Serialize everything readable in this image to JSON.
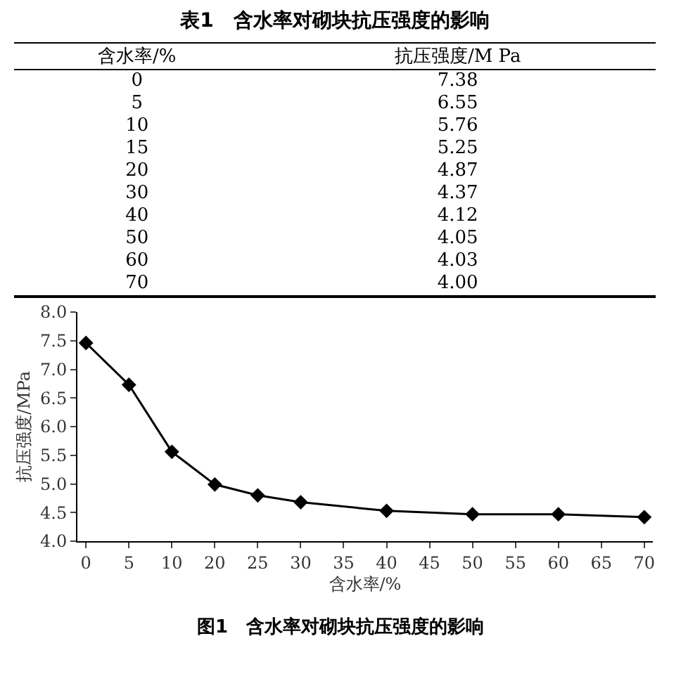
{
  "chart_data": [
    {
      "type": "other",
      "title": "表1　含水率对砌块抗压强度的影响",
      "xlabel": "含水率/%",
      "ylabel": "抗压强度/M Pa",
      "categories": [
        "0",
        "5",
        "10",
        "15",
        "20",
        "30",
        "40",
        "50",
        "60",
        "70"
      ],
      "value_labels": [
        "7.38",
        "6.55",
        "5.76",
        "5.25",
        "4.87",
        "4.37",
        "4.12",
        "4.05",
        "4.03",
        "4.00"
      ]
    },
    {
      "type": "line",
      "title": "图1　含水率对砌块抗压强度的影响",
      "xlabel": "含水率/%",
      "ylabel": "抗压强度/MPa",
      "categories": [
        "0",
        "5",
        "10",
        "20",
        "25",
        "30",
        "35",
        "40",
        "45",
        "50",
        "55",
        "60",
        "65",
        "70"
      ],
      "series": [
        {
          "color": "#000000",
          "values": [
            7.46,
            6.73,
            5.56,
            4.99,
            4.8,
            4.68,
            null,
            4.53,
            null,
            4.47,
            null,
            4.47,
            null,
            4.42
          ]
        }
      ],
      "ylim": [
        4,
        8
      ],
      "yticks": [
        {
          "value": 4,
          "label": "4.0"
        },
        {
          "value": 4.5,
          "label": "4.5"
        },
        {
          "value": 5,
          "label": "5.0"
        },
        {
          "value": 5.5,
          "label": "5.5"
        },
        {
          "value": 6,
          "label": "6.0"
        },
        {
          "value": 6.5,
          "label": "6.5"
        },
        {
          "value": 7,
          "label": "7.0"
        },
        {
          "value": 7.5,
          "label": "7.5"
        },
        {
          "value": 8,
          "label": "8.0"
        }
      ],
      "marker": "diamond",
      "line_style": "solid",
      "grid": false,
      "legend": false
    }
  ]
}
